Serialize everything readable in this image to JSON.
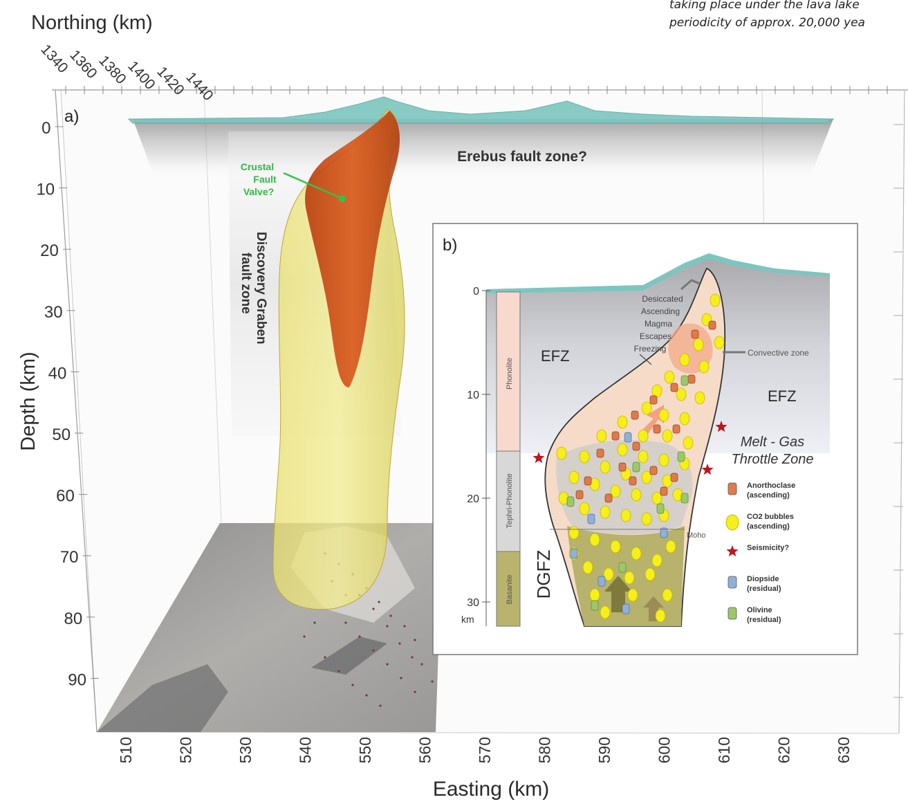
{
  "caption": {
    "line1": "taking place under the lava lake",
    "line2": "periodicity of approx. 20,000 yea"
  },
  "panel_a": {
    "label": "a)",
    "northing_title": "Northing (km)",
    "northing_ticks": [
      "1340",
      "1360",
      "1380",
      "1400",
      "1420",
      "1440"
    ],
    "depth_title": "Depth (km)",
    "depth_ticks": [
      "0",
      "10",
      "20",
      "30",
      "40",
      "50",
      "60",
      "70",
      "80",
      "90"
    ],
    "easting_title": "Easting (km)",
    "easting_ticks": [
      "510",
      "520",
      "530",
      "540",
      "550",
      "560",
      "570",
      "580",
      "590",
      "600",
      "610",
      "620",
      "630"
    ],
    "erebus_fault_zone": "Erebus fault zone?",
    "discovery_line1": "Discovery Graben",
    "discovery_line2": "fault zone",
    "crustal_valve": [
      "Crustal",
      "Fault",
      "Valve?"
    ]
  },
  "panel_b": {
    "label": "b)",
    "depth_ticks": [
      "0",
      "10",
      "20",
      "30"
    ],
    "km_label": "km",
    "column": [
      "Phonolite",
      "Tephri-Phonolite",
      "Basanite"
    ],
    "efz_left": "EFZ",
    "efz_right": "EFZ",
    "dgfz": "DGFZ",
    "melt_gas": [
      "Melt - Gas",
      "Throttle Zone"
    ],
    "ascend_note": [
      "Desiccated",
      "Ascending",
      "Magma",
      "Escapes",
      "Freezing"
    ],
    "convective": "Convective zone",
    "moho": "Moho",
    "legend": [
      {
        "name": "Anorthoclase",
        "sub": "(ascending)",
        "color": "#e07a4a",
        "icon": "crystal-icon"
      },
      {
        "name": "CO2 bubbles",
        "sub": "(ascending)",
        "color": "#f5ef1a",
        "icon": "bubble-icon"
      },
      {
        "name": "Seismicity?",
        "sub": "",
        "color": "#c0141c",
        "icon": "star-icon"
      },
      {
        "name": "Diopside",
        "sub": "(residual)",
        "color": "#8fb0d8",
        "icon": "crystal-icon"
      },
      {
        "name": "Olivine",
        "sub": "(residual)",
        "color": "#9bc86a",
        "icon": "crystal-icon"
      }
    ]
  }
}
